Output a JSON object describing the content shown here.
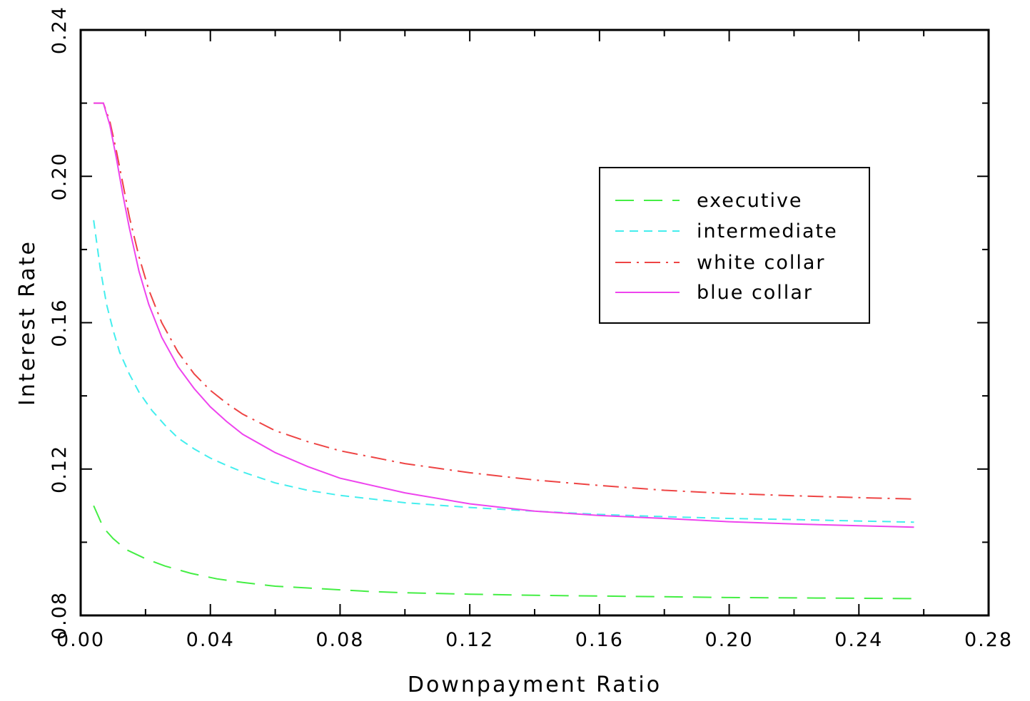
{
  "chart_data": {
    "type": "line",
    "xlabel": "Downpayment Ratio",
    "ylabel": "Interest Rate",
    "xlim": [
      0.0,
      0.28
    ],
    "ylim": [
      0.08,
      0.24
    ],
    "x_ticks": [
      "0.00",
      "0.04",
      "0.08",
      "0.12",
      "0.16",
      "0.20",
      "0.24",
      "0.28"
    ],
    "y_ticks": [
      "0.08",
      "0.12",
      "0.16",
      "0.20",
      "0.24"
    ],
    "grid": false,
    "legend_position": "upper-right",
    "series": [
      {
        "name": "executive",
        "color": "#44ee44",
        "style": "long-dash",
        "x": [
          0.004,
          0.007,
          0.01,
          0.014,
          0.02,
          0.026,
          0.034,
          0.042,
          0.05,
          0.06,
          0.07,
          0.08,
          0.09,
          0.1,
          0.12,
          0.14,
          0.16,
          0.18,
          0.2,
          0.22,
          0.24,
          0.257
        ],
        "y": [
          0.11,
          0.104,
          0.101,
          0.098,
          0.0955,
          0.0935,
          0.0915,
          0.09,
          0.089,
          0.088,
          0.0875,
          0.087,
          0.0865,
          0.0862,
          0.0858,
          0.0855,
          0.0853,
          0.0851,
          0.0849,
          0.0848,
          0.0847,
          0.0846
        ]
      },
      {
        "name": "intermediate",
        "color": "#44eeee",
        "style": "dashed",
        "x": [
          0.004,
          0.006,
          0.008,
          0.01,
          0.012,
          0.015,
          0.018,
          0.022,
          0.026,
          0.03,
          0.035,
          0.04,
          0.045,
          0.05,
          0.06,
          0.07,
          0.08,
          0.1,
          0.12,
          0.14,
          0.16,
          0.18,
          0.2,
          0.22,
          0.24,
          0.257
        ],
        "y": [
          0.188,
          0.175,
          0.165,
          0.158,
          0.152,
          0.146,
          0.141,
          0.136,
          0.132,
          0.1285,
          0.1255,
          0.123,
          0.121,
          0.1192,
          0.1162,
          0.1142,
          0.1128,
          0.1108,
          0.1095,
          0.1085,
          0.1076,
          0.107,
          0.1065,
          0.1062,
          0.1058,
          0.1055
        ]
      },
      {
        "name": "white collar",
        "color": "#ee4444",
        "style": "dash-dot",
        "x": [
          0.004,
          0.007,
          0.009,
          0.011,
          0.013,
          0.015,
          0.018,
          0.021,
          0.025,
          0.03,
          0.035,
          0.04,
          0.045,
          0.05,
          0.06,
          0.07,
          0.08,
          0.1,
          0.12,
          0.14,
          0.16,
          0.18,
          0.2,
          0.22,
          0.24,
          0.257
        ],
        "y": [
          0.22,
          0.22,
          0.215,
          0.207,
          0.198,
          0.189,
          0.178,
          0.169,
          0.16,
          0.152,
          0.146,
          0.1415,
          0.138,
          0.135,
          0.1305,
          0.1275,
          0.125,
          0.1215,
          0.119,
          0.117,
          0.1155,
          0.1142,
          0.1133,
          0.1127,
          0.1122,
          0.1118
        ]
      },
      {
        "name": "blue collar",
        "color": "#ee44ee",
        "style": "solid",
        "x": [
          0.004,
          0.007,
          0.009,
          0.011,
          0.013,
          0.015,
          0.018,
          0.021,
          0.025,
          0.03,
          0.035,
          0.04,
          0.045,
          0.05,
          0.06,
          0.07,
          0.08,
          0.1,
          0.12,
          0.14,
          0.16,
          0.18,
          0.2,
          0.22,
          0.24,
          0.257
        ],
        "y": [
          0.22,
          0.22,
          0.214,
          0.205,
          0.195,
          0.186,
          0.174,
          0.165,
          0.156,
          0.148,
          0.142,
          0.137,
          0.133,
          0.1295,
          0.1245,
          0.1207,
          0.1175,
          0.1135,
          0.1105,
          0.1085,
          0.1073,
          0.1065,
          0.1056,
          0.105,
          0.1045,
          0.1041
        ]
      }
    ]
  }
}
